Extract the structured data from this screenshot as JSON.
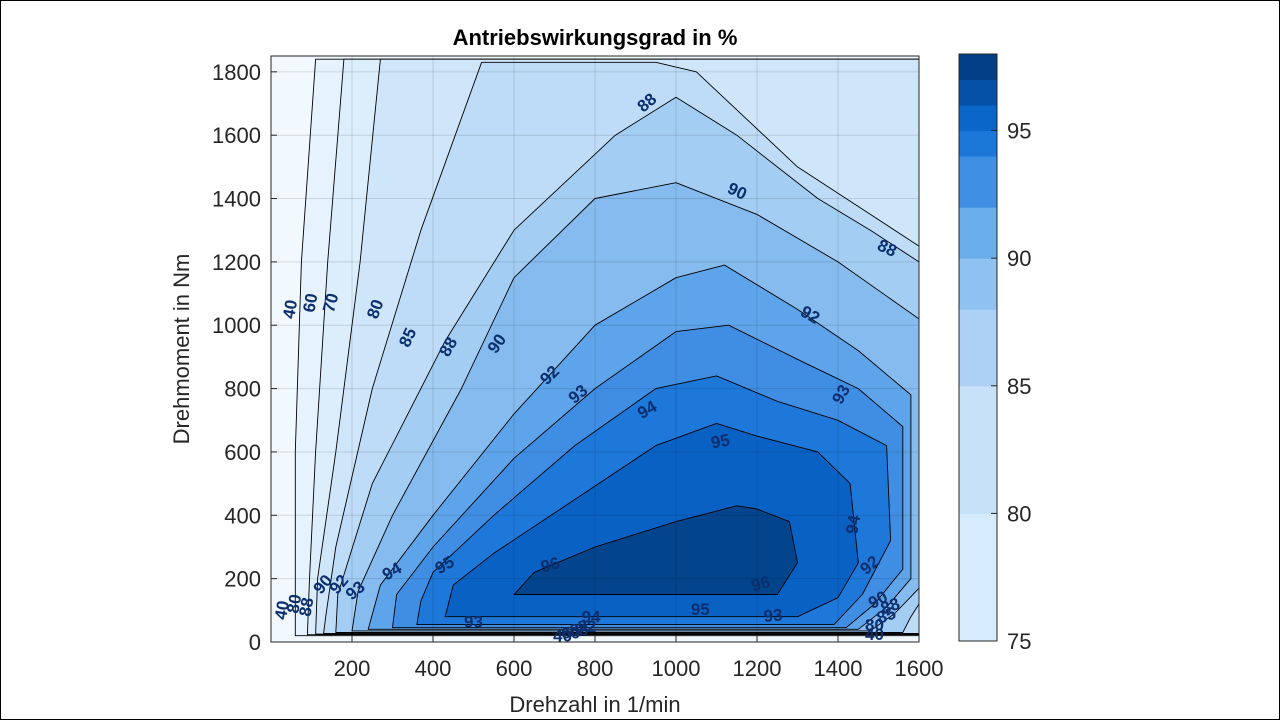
{
  "chart_data": {
    "type": "contourf",
    "title": "Antriebswirkungsgrad in %",
    "xlabel": "Drehzahl in 1/min",
    "ylabel": "Drehmoment in Nm",
    "xlim": [
      0,
      1600
    ],
    "ylim": [
      0,
      1850
    ],
    "xticks": [
      200,
      400,
      600,
      800,
      1000,
      1200,
      1400,
      1600
    ],
    "yticks": [
      0,
      200,
      400,
      600,
      800,
      1000,
      1200,
      1400,
      1600,
      1800
    ],
    "grid": true,
    "colorbar": {
      "range": [
        75,
        98
      ],
      "ticks": [
        75,
        80,
        85,
        90,
        95
      ],
      "placement": "right"
    },
    "contour_levels": [
      40,
      60,
      70,
      80,
      85,
      88,
      90,
      92,
      93,
      94,
      95,
      96
    ],
    "level_colors": [
      "#f1f8fe",
      "#e6f2fd",
      "#dceefc",
      "#cfe6fa",
      "#bedcf7",
      "#a4cdf4",
      "#86bbef",
      "#5ea4ea",
      "#3f8ee4",
      "#1d78d9",
      "#0961c4",
      "#02458c"
    ],
    "regions": [
      {
        "level": 40,
        "polygon": [
          [
            0,
            0
          ],
          [
            1600,
            0
          ],
          [
            1600,
            1850
          ],
          [
            0,
            1850
          ]
        ]
      },
      {
        "level": 60,
        "polygon": [
          [
            60,
            20
          ],
          [
            1600,
            20
          ],
          [
            1600,
            1840
          ],
          [
            110,
            1840
          ],
          [
            75,
            1200
          ],
          [
            60,
            600
          ]
        ]
      },
      {
        "level": 70,
        "polygon": [
          [
            90,
            23
          ],
          [
            1600,
            23
          ],
          [
            1600,
            1840
          ],
          [
            180,
            1840
          ],
          [
            140,
            1200
          ],
          [
            110,
            600
          ],
          [
            95,
            200
          ]
        ]
      },
      {
        "level": 80,
        "polygon": [
          [
            110,
            25
          ],
          [
            1600,
            25
          ],
          [
            1600,
            1840
          ],
          [
            270,
            1840
          ],
          [
            220,
            1200
          ],
          [
            160,
            600
          ],
          [
            115,
            200
          ]
        ]
      },
      {
        "level": 85,
        "polygon": [
          [
            130,
            27
          ],
          [
            1600,
            27
          ],
          [
            1600,
            1250
          ],
          [
            1480,
            1350
          ],
          [
            1300,
            1500
          ],
          [
            1050,
            1800
          ],
          [
            950,
            1830
          ],
          [
            520,
            1830
          ],
          [
            370,
            1300
          ],
          [
            250,
            800
          ],
          [
            160,
            300
          ],
          [
            135,
            80
          ]
        ]
      },
      {
        "level": 88,
        "polygon": [
          [
            160,
            30
          ],
          [
            1560,
            30
          ],
          [
            1580,
            80
          ],
          [
            1600,
            120
          ],
          [
            1600,
            1200
          ],
          [
            1480,
            1300
          ],
          [
            1350,
            1400
          ],
          [
            1150,
            1600
          ],
          [
            1000,
            1720
          ],
          [
            850,
            1600
          ],
          [
            600,
            1300
          ],
          [
            430,
            950
          ],
          [
            250,
            500
          ],
          [
            165,
            150
          ]
        ]
      },
      {
        "level": 90,
        "polygon": [
          [
            200,
            35
          ],
          [
            1480,
            35
          ],
          [
            1540,
            90
          ],
          [
            1600,
            170
          ],
          [
            1600,
            1020
          ],
          [
            1400,
            1200
          ],
          [
            1200,
            1350
          ],
          [
            1000,
            1450
          ],
          [
            800,
            1400
          ],
          [
            600,
            1150
          ],
          [
            470,
            800
          ],
          [
            300,
            400
          ],
          [
            215,
            160
          ]
        ]
      },
      {
        "level": 92,
        "polygon": [
          [
            240,
            40
          ],
          [
            1450,
            40
          ],
          [
            1520,
            110
          ],
          [
            1580,
            200
          ],
          [
            1580,
            780
          ],
          [
            1450,
            920
          ],
          [
            1300,
            1050
          ],
          [
            1120,
            1190
          ],
          [
            1000,
            1150
          ],
          [
            800,
            1000
          ],
          [
            600,
            720
          ],
          [
            400,
            400
          ],
          [
            270,
            180
          ]
        ]
      },
      {
        "level": 93,
        "polygon": [
          [
            300,
            45
          ],
          [
            1420,
            45
          ],
          [
            1490,
            120
          ],
          [
            1560,
            230
          ],
          [
            1560,
            680
          ],
          [
            1450,
            800
          ],
          [
            1320,
            880
          ],
          [
            1130,
            1000
          ],
          [
            1000,
            980
          ],
          [
            800,
            800
          ],
          [
            600,
            580
          ],
          [
            400,
            300
          ],
          [
            310,
            150
          ]
        ]
      },
      {
        "level": 94,
        "polygon": [
          [
            360,
            55
          ],
          [
            1390,
            55
          ],
          [
            1460,
            150
          ],
          [
            1530,
            320
          ],
          [
            1520,
            620
          ],
          [
            1400,
            700
          ],
          [
            1250,
            760
          ],
          [
            1100,
            840
          ],
          [
            950,
            800
          ],
          [
            750,
            620
          ],
          [
            550,
            400
          ],
          [
            400,
            220
          ],
          [
            370,
            130
          ]
        ]
      },
      {
        "level": 95,
        "polygon": [
          [
            430,
            80
          ],
          [
            1300,
            80
          ],
          [
            1400,
            140
          ],
          [
            1450,
            250
          ],
          [
            1430,
            500
          ],
          [
            1350,
            600
          ],
          [
            1200,
            650
          ],
          [
            1100,
            690
          ],
          [
            950,
            620
          ],
          [
            750,
            450
          ],
          [
            550,
            280
          ],
          [
            450,
            180
          ]
        ]
      },
      {
        "level": 96,
        "polygon": [
          [
            600,
            150
          ],
          [
            1250,
            150
          ],
          [
            1300,
            250
          ],
          [
            1280,
            380
          ],
          [
            1200,
            420
          ],
          [
            1150,
            430
          ],
          [
            1000,
            380
          ],
          [
            800,
            300
          ],
          [
            650,
            220
          ]
        ]
      }
    ],
    "contour_labels": [
      {
        "text": "40",
        "x": 50,
        "y": 1050,
        "angle": -80
      },
      {
        "text": "60",
        "x": 100,
        "y": 1070,
        "angle": -80
      },
      {
        "text": "70",
        "x": 150,
        "y": 1070,
        "angle": -75
      },
      {
        "text": "80",
        "x": 260,
        "y": 1050,
        "angle": -70
      },
      {
        "text": "85",
        "x": 340,
        "y": 960,
        "angle": -65
      },
      {
        "text": "88",
        "x": 440,
        "y": 930,
        "angle": -60
      },
      {
        "text": "90",
        "x": 560,
        "y": 940,
        "angle": -55
      },
      {
        "text": "92",
        "x": 690,
        "y": 840,
        "angle": -45
      },
      {
        "text": "93",
        "x": 760,
        "y": 780,
        "angle": -40
      },
      {
        "text": "94",
        "x": 930,
        "y": 730,
        "angle": -30
      },
      {
        "text": "95",
        "x": 1110,
        "y": 630,
        "angle": -10
      },
      {
        "text": "96",
        "x": 690,
        "y": 240,
        "angle": -15
      },
      {
        "text": "96",
        "x": 1210,
        "y": 180,
        "angle": -15
      },
      {
        "text": "95",
        "x": 1060,
        "y": 100,
        "angle": 0
      },
      {
        "text": "93",
        "x": 500,
        "y": 60,
        "angle": 0
      },
      {
        "text": "93",
        "x": 1240,
        "y": 80,
        "angle": -5
      },
      {
        "text": "94",
        "x": 790,
        "y": 75,
        "angle": 0
      },
      {
        "text": "92",
        "x": 1480,
        "y": 240,
        "angle": -40
      },
      {
        "text": "94",
        "x": 1440,
        "y": 370,
        "angle": -80
      },
      {
        "text": "93",
        "x": 1410,
        "y": 780,
        "angle": -60
      },
      {
        "text": "92",
        "x": 1330,
        "y": 1030,
        "angle": 30
      },
      {
        "text": "90",
        "x": 1150,
        "y": 1420,
        "angle": 25
      },
      {
        "text": "88",
        "x": 930,
        "y": 1700,
        "angle": -40
      },
      {
        "text": "88",
        "x": 1520,
        "y": 1240,
        "angle": 25
      },
      {
        "text": "94",
        "x": 300,
        "y": 220,
        "angle": -30
      },
      {
        "text": "95",
        "x": 430,
        "y": 240,
        "angle": -30
      },
      {
        "text": "93",
        "x": 210,
        "y": 160,
        "angle": -40
      },
      {
        "text": "92",
        "x": 170,
        "y": 180,
        "angle": -50
      },
      {
        "text": "90",
        "x": 130,
        "y": 180,
        "angle": -50
      },
      {
        "text": "88",
        "x": 90,
        "y": 110,
        "angle": -80
      },
      {
        "text": "40",
        "x": 30,
        "y": 100,
        "angle": -80
      },
      {
        "text": "80",
        "x": 60,
        "y": 120,
        "angle": -80
      },
      {
        "text": "88",
        "x": 1530,
        "y": 110,
        "angle": -20
      },
      {
        "text": "90",
        "x": 1500,
        "y": 130,
        "angle": -30
      },
      {
        "text": "85",
        "x": 1520,
        "y": 80,
        "angle": -20
      },
      {
        "text": "80",
        "x": 1490,
        "y": 50,
        "angle": 0
      },
      {
        "text": "40",
        "x": 1490,
        "y": 20,
        "angle": 0
      },
      {
        "text": "40",
        "x": 720,
        "y": 15,
        "angle": 0
      },
      {
        "text": "60",
        "x": 740,
        "y": 25,
        "angle": 0
      },
      {
        "text": "88",
        "x": 760,
        "y": 35,
        "angle": 0
      },
      {
        "text": "92",
        "x": 780,
        "y": 45,
        "angle": 0
      }
    ]
  }
}
